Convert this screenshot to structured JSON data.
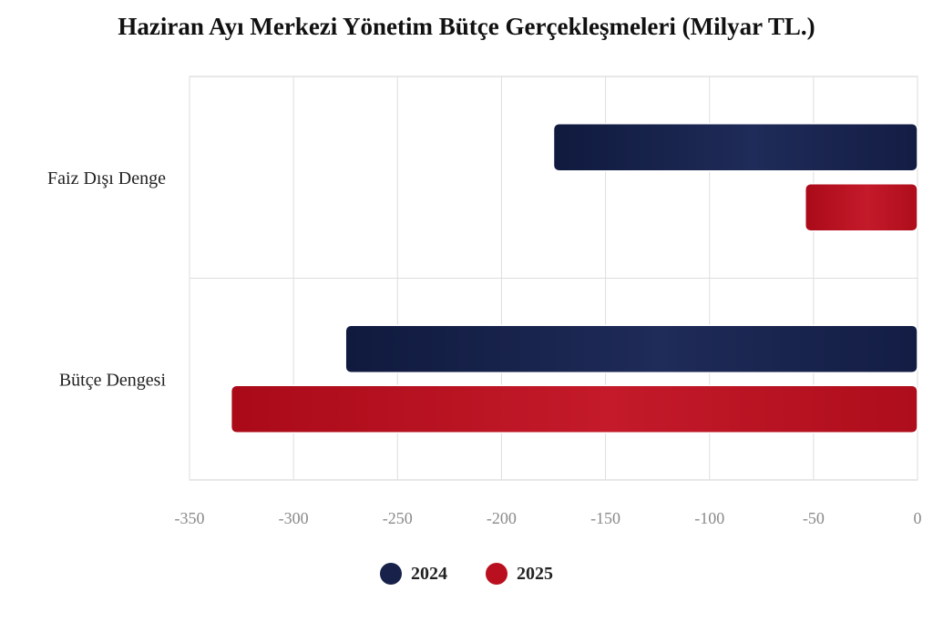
{
  "chart_data": {
    "type": "bar",
    "orientation": "horizontal",
    "title": "Haziran Ayı Merkezi Yönetim Bütçe Gerçekleşmeleri (Milyar TL.)",
    "xlabel": "",
    "ylabel": "",
    "categories": [
      "Faiz Dışı Denge",
      "Bütçe Dengesi"
    ],
    "series": [
      {
        "name": "2024",
        "color": "#17214a",
        "values": [
          -175,
          -275
        ]
      },
      {
        "name": "2025",
        "color": "#b90f1e",
        "values": [
          -54,
          -330
        ]
      }
    ],
    "xlim": [
      -350,
      0
    ],
    "xticks": [
      -350,
      -300,
      -250,
      -200,
      -150,
      -100,
      -50,
      0
    ],
    "xtick_labels": [
      "-350",
      "-300",
      "-250",
      "-200",
      "-150",
      "-100",
      "-50",
      "0"
    ],
    "grid": true,
    "legend_position": "bottom"
  }
}
